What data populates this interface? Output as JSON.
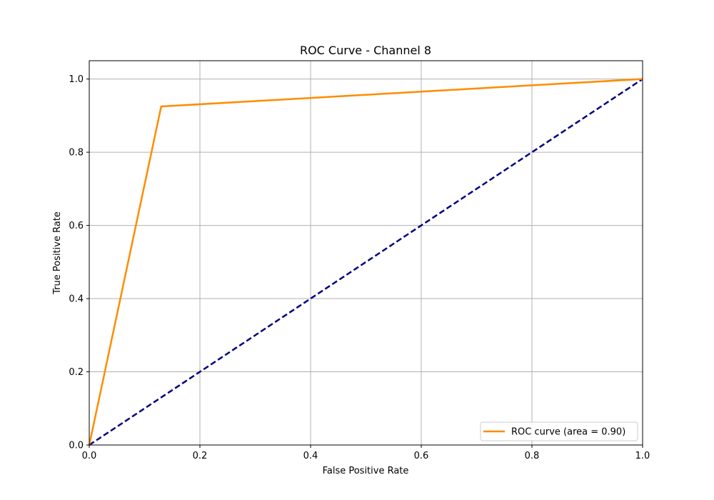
{
  "chart_data": {
    "type": "line",
    "title": "ROC Curve - Channel 8",
    "xlabel": "False Positive Rate",
    "ylabel": "True Positive Rate",
    "xlim": [
      0.0,
      1.0
    ],
    "ylim": [
      0.0,
      1.05
    ],
    "x_ticks": [
      "0.0",
      "0.2",
      "0.4",
      "0.6",
      "0.8",
      "1.0"
    ],
    "y_ticks": [
      "0.0",
      "0.2",
      "0.4",
      "0.6",
      "0.8",
      "1.0"
    ],
    "grid": true,
    "legend_position": "lower-right",
    "series": [
      {
        "name": "ROC curve (area = 0.90)",
        "color": "#ff8c00",
        "style": "solid",
        "x": [
          0.0,
          0.13,
          1.0
        ],
        "y": [
          0.0,
          0.925,
          1.0
        ]
      },
      {
        "color": "#000080",
        "style": "dashed",
        "x": [
          0.0,
          1.0
        ],
        "y": [
          0.0,
          1.0
        ]
      }
    ]
  }
}
